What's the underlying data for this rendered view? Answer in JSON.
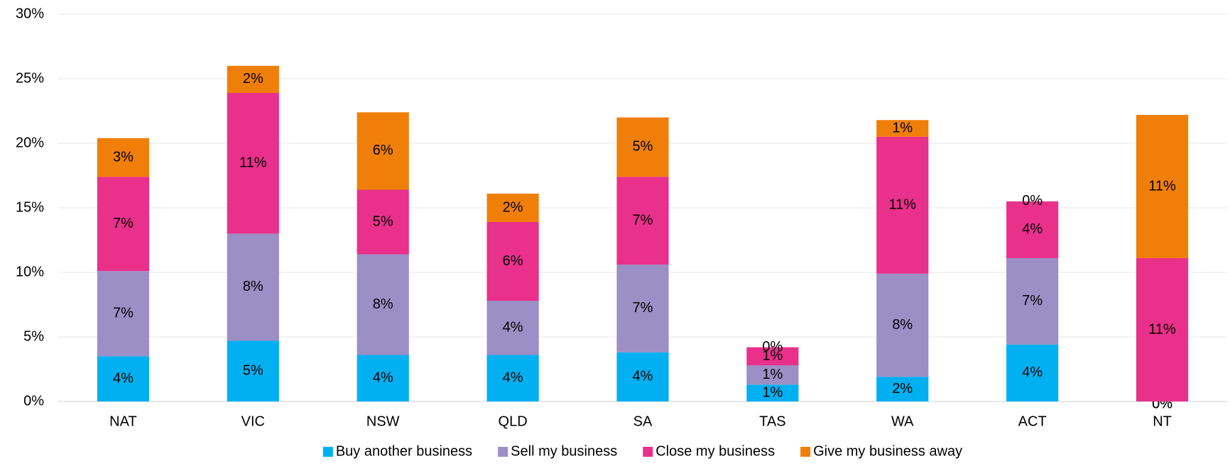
{
  "chart_data": {
    "type": "stacked_bar",
    "categories": [
      "NAT",
      "VIC",
      "NSW",
      "QLD",
      "SA",
      "TAS",
      "WA",
      "ACT",
      "NT"
    ],
    "series": [
      {
        "name": "Buy another business",
        "color": "#00b0f0",
        "values": [
          3.5,
          4.7,
          3.6,
          3.6,
          3.8,
          1.3,
          1.9,
          4.4,
          0
        ],
        "value_labels": [
          "4%",
          "5%",
          "4%",
          "4%",
          "4%",
          "1%",
          "2%",
          "4%",
          "0%"
        ]
      },
      {
        "name": "Sell my business",
        "color": "#9b8fc6",
        "values": [
          6.6,
          8.3,
          7.8,
          4.2,
          6.8,
          1.5,
          8.0,
          6.7,
          0
        ],
        "value_labels": [
          "7%",
          "8%",
          "8%",
          "4%",
          "7%",
          "1%",
          "8%",
          "7%",
          "0%"
        ]
      },
      {
        "name": "Close my business",
        "color": "#e9308b",
        "values": [
          7.3,
          10.9,
          5.0,
          6.1,
          6.8,
          1.4,
          10.6,
          4.4,
          11.1
        ],
        "value_labels": [
          "7%",
          "11%",
          "5%",
          "6%",
          "7%",
          "1%",
          "11%",
          "4%",
          "11%"
        ]
      },
      {
        "name": "Give my business away",
        "color": "#f07f09",
        "values": [
          3.0,
          2.1,
          6.0,
          2.2,
          4.6,
          0,
          1.3,
          0,
          11.1
        ],
        "value_labels": [
          "3%",
          "2%",
          "6%",
          "2%",
          "5%",
          "0%",
          "1%",
          "0%",
          "11%"
        ]
      }
    ],
    "ylim": [
      0,
      30
    ],
    "yticks": [
      {
        "value": 0,
        "label": "0%"
      },
      {
        "value": 5,
        "label": "5%"
      },
      {
        "value": 10,
        "label": "10%"
      },
      {
        "value": 15,
        "label": "15%"
      },
      {
        "value": 20,
        "label": "20%"
      },
      {
        "value": 25,
        "label": "25%"
      },
      {
        "value": 30,
        "label": "30%"
      }
    ],
    "grid": true,
    "legend": "bottom"
  }
}
